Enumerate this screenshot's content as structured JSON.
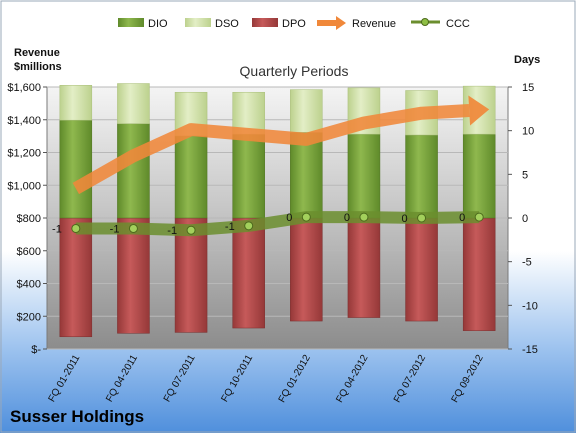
{
  "chart_data": {
    "type": "bar",
    "title": "Quarterly Periods",
    "company": "Susser Holdings",
    "left_axis_title_line1": "Revenue",
    "left_axis_title_line2": "$millions",
    "right_axis_title": "Days",
    "categories": [
      "FQ 01-2011",
      "FQ 04-2011",
      "FQ 07-2011",
      "FQ 10-2011",
      "FQ 01-2012",
      "FQ 04-2012",
      "FQ 07-2012",
      "FQ 09-2012"
    ],
    "days_axis": {
      "ylim": [
        -15,
        15
      ],
      "ticks": [
        15,
        10,
        5,
        0,
        -5,
        -10,
        -15
      ],
      "tick_labels": [
        "15",
        "10",
        "5",
        "0",
        "-5",
        "-10",
        "-15"
      ]
    },
    "revenue_axis": {
      "ylim": [
        0,
        1600
      ],
      "ticks": [
        1600,
        1400,
        1200,
        1000,
        800,
        600,
        400,
        200,
        0
      ],
      "tick_labels": [
        "$1,600",
        "$1,400",
        "$1,200",
        "$1,000",
        "$800",
        "$600",
        "$400",
        "$200",
        "$-"
      ]
    },
    "series": [
      {
        "name": "DIO",
        "kind": "stacked-bar",
        "axis": "days",
        "color": "#7fa541",
        "values": [
          11.2,
          10.8,
          9.4,
          9.6,
          9.8,
          9.6,
          9.5,
          9.6
        ]
      },
      {
        "name": "DSO",
        "kind": "stacked-bar",
        "axis": "days",
        "color": "#d3e4ab",
        "values": [
          4.0,
          4.6,
          5.0,
          4.8,
          4.9,
          5.3,
          5.1,
          5.5
        ]
      },
      {
        "name": "DPO",
        "kind": "negative-bar",
        "axis": "days",
        "color": "#b84b4b",
        "values": [
          -13.6,
          -13.2,
          -13.1,
          -12.6,
          -11.8,
          -11.4,
          -11.8,
          -12.9
        ]
      },
      {
        "name": "Revenue",
        "kind": "arrow-line",
        "axis": "revenue",
        "color": "#f0883a",
        "values": [
          980,
          1180,
          1340,
          1310,
          1280,
          1380,
          1440,
          1460
        ]
      },
      {
        "name": "CCC",
        "kind": "line-markers",
        "axis": "days",
        "color": "#6b8e2e",
        "values": [
          -1.2,
          -1.2,
          -1.4,
          -0.9,
          0.1,
          0.1,
          0.0,
          0.1
        ]
      }
    ],
    "data_labels": [
      {
        "series": "CCC",
        "index": 0,
        "text": "-1"
      },
      {
        "series": "CCC",
        "index": 1,
        "text": "-1"
      },
      {
        "series": "CCC",
        "index": 2,
        "text": "-1"
      },
      {
        "series": "CCC",
        "index": 3,
        "text": "-1"
      },
      {
        "series": "CCC",
        "index": 4,
        "text": "0"
      },
      {
        "series": "CCC",
        "index": 5,
        "text": "0"
      },
      {
        "series": "CCC",
        "index": 6,
        "text": "0"
      },
      {
        "series": "CCC",
        "index": 7,
        "text": "0"
      }
    ],
    "legend": [
      "DIO",
      "DSO",
      "DPO",
      "Revenue",
      "CCC"
    ],
    "legend_position": "top",
    "grid": true
  }
}
